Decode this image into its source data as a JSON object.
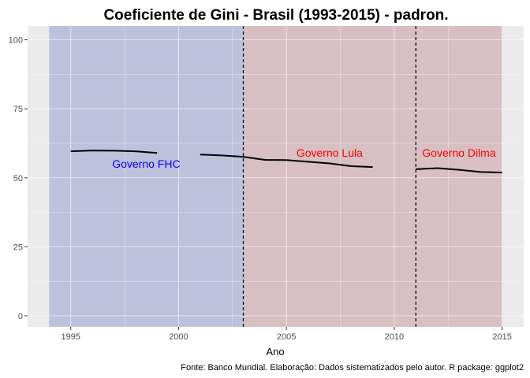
{
  "chart_data": {
    "type": "line",
    "title": "Coeficiente de Gini - Brasil (1993-2015) - padron.",
    "xlabel": "Ano",
    "ylabel": "",
    "caption": "Fonte: Banco Mundial. Elaboração: Dados sistematizados pelo autor. R package: ggplot2",
    "xlim": [
      1993,
      2016
    ],
    "ylim": [
      -4,
      105
    ],
    "x_ticks": [
      1995,
      2000,
      2005,
      2010,
      2015
    ],
    "y_ticks": [
      0,
      25,
      50,
      75,
      100
    ],
    "grid": true,
    "colors": {
      "panel_bg": "#ebebeb",
      "grid": "#ffffff",
      "line": "#000000",
      "fhc_band": "#bfc0dc",
      "lula_band": "#d7bfc3",
      "fhc_text": "#0000ff",
      "gov_text": "#ff0000"
    },
    "periods": [
      {
        "name": "Governo FHC",
        "start": 1994,
        "end": 2003,
        "color": "#bfc0dc",
        "label_color": "#0000ff",
        "label_x": 1998.5,
        "label_y": 55
      },
      {
        "name": "Governo Lula",
        "start": 2003,
        "end": 2011,
        "color": "#d7bfc3",
        "label_color": "#ff0000",
        "label_x": 2007,
        "label_y": 59
      },
      {
        "name": "Governo Dilma",
        "start": 2011,
        "end": 2015,
        "color": "#d7bfc3",
        "label_color": "#ff0000",
        "label_x": 2013,
        "label_y": 59
      }
    ],
    "vlines": [
      2003,
      2011
    ],
    "series": [
      {
        "values": [
          [
            1995,
            59.6
          ],
          [
            1996,
            59.9
          ],
          [
            1997,
            59.8
          ],
          [
            1998,
            59.6
          ],
          [
            1999,
            59.0
          ]
        ]
      },
      {
        "values": [
          [
            2001,
            58.4
          ],
          [
            2002,
            58.1
          ],
          [
            2003,
            57.6
          ],
          [
            2004,
            56.5
          ],
          [
            2005,
            56.4
          ],
          [
            2006,
            55.8
          ],
          [
            2007,
            55.2
          ],
          [
            2008,
            54.2
          ],
          [
            2009,
            53.9
          ]
        ]
      },
      {
        "values": [
          [
            2011,
            53.1
          ],
          [
            2012,
            53.5
          ],
          [
            2013,
            52.9
          ],
          [
            2014,
            52.1
          ],
          [
            2015,
            51.9
          ]
        ]
      }
    ]
  }
}
